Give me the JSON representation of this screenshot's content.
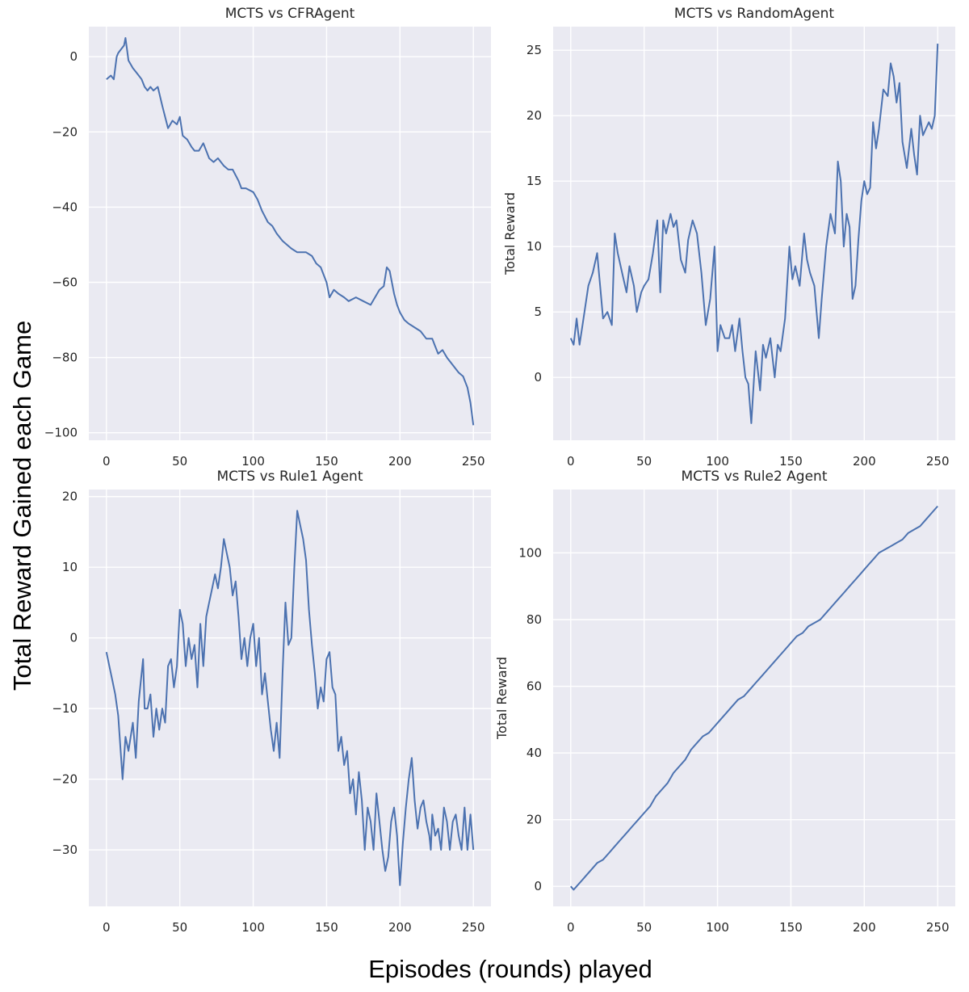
{
  "figure": {
    "ylabel": "Total Reward Gained each Game",
    "xlabel": "Episodes (rounds) played"
  },
  "style": {
    "background": "#eaeaf2",
    "grid": "#ffffff",
    "line": "#4c72b0",
    "text": "#262626"
  },
  "chart_data": [
    {
      "type": "line",
      "title": "MCTS vs CFRAgent",
      "xlabel": "",
      "ylabel": "",
      "xlim": [
        -12,
        262
      ],
      "ylim": [
        -102,
        8
      ],
      "xticks": [
        0,
        50,
        100,
        150,
        200,
        250
      ],
      "yticks": [
        0,
        -20,
        -40,
        -60,
        -80,
        -100
      ],
      "grid": true,
      "series": [
        {
          "x": [
            0,
            3,
            5,
            7,
            8,
            10,
            12,
            13,
            15,
            18,
            20,
            22,
            24,
            26,
            28,
            30,
            32,
            35,
            38,
            40,
            42,
            45,
            48,
            50,
            52,
            55,
            58,
            60,
            63,
            66,
            70,
            73,
            76,
            80,
            83,
            86,
            90,
            92,
            95,
            100,
            103,
            106,
            110,
            113,
            116,
            120,
            123,
            126,
            130,
            133,
            136,
            140,
            143,
            146,
            150,
            152,
            155,
            158,
            162,
            165,
            170,
            175,
            180,
            183,
            186,
            189,
            191,
            193,
            196,
            198,
            200,
            203,
            206,
            210,
            214,
            218,
            222,
            224,
            226,
            229,
            232,
            236,
            240,
            243,
            246,
            248,
            250
          ],
          "y": [
            -6,
            -5,
            -6,
            0,
            1,
            2,
            3,
            5,
            -1,
            -3,
            -4,
            -5,
            -6,
            -8,
            -9,
            -8,
            -9,
            -8,
            -13,
            -16,
            -19,
            -17,
            -18,
            -16,
            -21,
            -22,
            -24,
            -25,
            -25,
            -23,
            -27,
            -28,
            -27,
            -29,
            -30,
            -30,
            -33,
            -35,
            -35,
            -36,
            -38,
            -41,
            -44,
            -45,
            -47,
            -49,
            -50,
            -51,
            -52,
            -52,
            -52,
            -53,
            -55,
            -56,
            -60,
            -64,
            -62,
            -63,
            -64,
            -65,
            -64,
            -65,
            -66,
            -64,
            -62,
            -61,
            -56,
            -57,
            -63,
            -66,
            -68,
            -70,
            -71,
            -72,
            -73,
            -75,
            -75,
            -77,
            -79,
            -78,
            -80,
            -82,
            -84,
            -85,
            -88,
            -92,
            -98
          ]
        }
      ]
    },
    {
      "type": "line",
      "title": "MCTS vs RandomAgent",
      "xlabel": "",
      "ylabel": "Total Reward",
      "xlim": [
        -12,
        262
      ],
      "ylim": [
        -4.8,
        26.8
      ],
      "xticks": [
        0,
        50,
        100,
        150,
        200,
        250
      ],
      "yticks": [
        0,
        5,
        10,
        15,
        20,
        25
      ],
      "grid": true,
      "series": [
        {
          "x": [
            0,
            2,
            4,
            6,
            8,
            10,
            12,
            15,
            18,
            20,
            22,
            25,
            28,
            30,
            32,
            35,
            38,
            40,
            43,
            45,
            48,
            50,
            53,
            56,
            59,
            61,
            63,
            65,
            68,
            70,
            72,
            75,
            78,
            80,
            83,
            86,
            89,
            92,
            95,
            98,
            100,
            102,
            105,
            108,
            110,
            112,
            115,
            117,
            119,
            121,
            123,
            126,
            129,
            131,
            133,
            136,
            139,
            141,
            143,
            146,
            149,
            151,
            153,
            156,
            159,
            161,
            163,
            166,
            169,
            171,
            174,
            177,
            180,
            182,
            184,
            186,
            188,
            190,
            192,
            194,
            196,
            198,
            200,
            202,
            204,
            206,
            208,
            210,
            213,
            216,
            218,
            220,
            222,
            224,
            226,
            229,
            232,
            234,
            236,
            238,
            240,
            242,
            244,
            246,
            248,
            250
          ],
          "y": [
            3,
            2.5,
            4.5,
            2.5,
            4,
            5.5,
            7,
            8,
            9.5,
            7,
            4.5,
            5,
            4,
            11,
            9.5,
            8,
            6.5,
            8.5,
            7,
            5,
            6.5,
            7,
            7.5,
            9.5,
            12,
            6.5,
            12,
            11,
            12.5,
            11.5,
            12,
            9,
            8,
            10.5,
            12,
            11,
            8,
            4,
            6,
            10,
            2,
            4,
            3,
            3,
            4,
            2,
            4.5,
            2,
            0,
            -0.5,
            -3.5,
            2,
            -1,
            2.5,
            1.5,
            3,
            0,
            2.5,
            2,
            4.5,
            10,
            7.5,
            8.5,
            7,
            11,
            9,
            8,
            7,
            3,
            6,
            10,
            12.5,
            11,
            16.5,
            15,
            10,
            12.5,
            11.5,
            6,
            7,
            10.5,
            13.5,
            15,
            14,
            14.5,
            19.5,
            17.5,
            19,
            22,
            21.5,
            24,
            23,
            21,
            22.5,
            18,
            16,
            19,
            17,
            15.5,
            20,
            18.5,
            19,
            19.5,
            19,
            20,
            25.5
          ]
        }
      ]
    },
    {
      "type": "line",
      "title": "MCTS vs Rule1 Agent",
      "xlabel": "",
      "ylabel": "",
      "xlim": [
        -12,
        262
      ],
      "ylim": [
        -38,
        21
      ],
      "xticks": [
        0,
        50,
        100,
        150,
        200,
        250
      ],
      "yticks": [
        20,
        10,
        0,
        -10,
        -20,
        -30
      ],
      "grid": true,
      "series": [
        {
          "x": [
            0,
            2,
            4,
            6,
            8,
            10,
            11,
            12,
            13,
            15,
            18,
            20,
            22,
            25,
            26,
            28,
            30,
            32,
            34,
            36,
            38,
            40,
            42,
            44,
            46,
            48,
            50,
            52,
            54,
            56,
            58,
            60,
            62,
            64,
            66,
            68,
            70,
            72,
            74,
            76,
            78,
            80,
            82,
            84,
            86,
            88,
            90,
            92,
            94,
            96,
            98,
            100,
            102,
            104,
            106,
            108,
            110,
            112,
            114,
            116,
            118,
            120,
            122,
            124,
            126,
            128,
            130,
            132,
            134,
            136,
            138,
            140,
            142,
            144,
            146,
            148,
            150,
            152,
            154,
            156,
            158,
            160,
            162,
            164,
            166,
            168,
            170,
            172,
            174,
            176,
            178,
            180,
            182,
            184,
            186,
            188,
            190,
            192,
            194,
            196,
            198,
            200,
            202,
            204,
            206,
            208,
            210,
            212,
            214,
            216,
            218,
            220,
            221,
            222,
            224,
            226,
            228,
            230,
            232,
            234,
            236,
            238,
            240,
            242,
            244,
            246,
            248,
            250
          ],
          "y": [
            -2,
            -4,
            -6,
            -8,
            -11,
            -17,
            -20,
            -17,
            -14,
            -16,
            -12,
            -17,
            -9,
            -3,
            -10,
            -10,
            -8,
            -14,
            -10,
            -13,
            -10,
            -12,
            -4,
            -3,
            -7,
            -4,
            4,
            2,
            -4,
            0,
            -3,
            -1,
            -7,
            2,
            -4,
            3,
            5,
            7,
            9,
            7,
            10,
            14,
            12,
            10,
            6,
            8,
            3,
            -3,
            0,
            -4,
            0,
            2,
            -4,
            0,
            -8,
            -5,
            -9,
            -13,
            -16,
            -12,
            -17,
            -5,
            5,
            -1,
            0,
            10,
            18,
            16,
            14,
            11,
            4,
            -1,
            -5,
            -10,
            -7,
            -9,
            -3,
            -2,
            -7,
            -8,
            -16,
            -14,
            -18,
            -16,
            -22,
            -20,
            -25,
            -19,
            -23,
            -30,
            -24,
            -26,
            -30,
            -22,
            -26,
            -30,
            -33,
            -31,
            -26,
            -24,
            -28,
            -35,
            -29,
            -24,
            -20,
            -17,
            -23,
            -27,
            -24,
            -23,
            -26,
            -28,
            -30,
            -25,
            -28,
            -27,
            -30,
            -24,
            -26,
            -30,
            -26,
            -25,
            -28,
            -30,
            -24,
            -30,
            -25,
            -30
          ]
        }
      ]
    },
    {
      "type": "line",
      "title": "MCTS vs Rule2 Agent",
      "xlabel": "",
      "ylabel": "Total Reward",
      "xlim": [
        -12,
        262
      ],
      "ylim": [
        -6,
        119
      ],
      "xticks": [
        0,
        50,
        100,
        150,
        200,
        250
      ],
      "yticks": [
        0,
        20,
        40,
        60,
        80,
        100
      ],
      "grid": true,
      "series": [
        {
          "x": [
            0,
            2,
            4,
            6,
            8,
            10,
            14,
            18,
            22,
            26,
            30,
            34,
            38,
            42,
            46,
            50,
            54,
            58,
            62,
            66,
            70,
            74,
            78,
            82,
            86,
            90,
            94,
            98,
            102,
            106,
            110,
            114,
            118,
            122,
            126,
            130,
            134,
            138,
            142,
            146,
            150,
            154,
            158,
            162,
            166,
            170,
            174,
            178,
            182,
            186,
            190,
            194,
            198,
            202,
            206,
            210,
            214,
            218,
            222,
            226,
            230,
            234,
            238,
            242,
            246,
            250
          ],
          "y": [
            0,
            -1,
            0,
            1,
            2,
            3,
            5,
            7,
            8,
            10,
            12,
            14,
            16,
            18,
            20,
            22,
            24,
            27,
            29,
            31,
            34,
            36,
            38,
            41,
            43,
            45,
            46,
            48,
            50,
            52,
            54,
            56,
            57,
            59,
            61,
            63,
            65,
            67,
            69,
            71,
            73,
            75,
            76,
            78,
            79,
            80,
            82,
            84,
            86,
            88,
            90,
            92,
            94,
            96,
            98,
            100,
            101,
            102,
            103,
            104,
            106,
            107,
            108,
            110,
            112,
            114
          ]
        }
      ]
    }
  ]
}
